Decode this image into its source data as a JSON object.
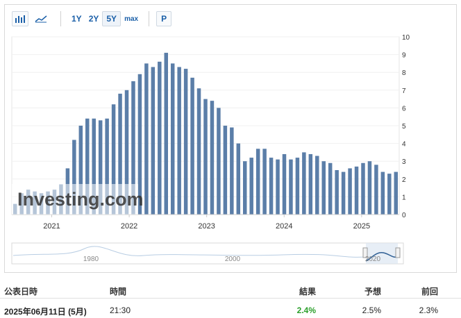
{
  "toolbar": {
    "bar_chart_icon": "bar-chart-icon",
    "line_chart_icon": "line-chart-icon",
    "ranges": [
      "1Y",
      "2Y",
      "5Y",
      "max"
    ],
    "active_range": "5Y",
    "p_label": "P"
  },
  "chart_data": {
    "type": "bar",
    "color": "#5b7ea8",
    "y_ticks": [
      "0",
      "1",
      "2",
      "3",
      "4",
      "5",
      "6",
      "7",
      "8",
      "9",
      "10"
    ],
    "ylim": [
      0,
      10
    ],
    "x_tick_labels": [
      "2021",
      "2022",
      "2023",
      "2024",
      "2025"
    ],
    "series": [
      {
        "values": [
          0.6,
          1.2,
          1.4,
          1.3,
          1.2,
          1.3,
          1.4,
          1.7,
          2.6,
          4.2,
          5.0,
          5.4,
          5.4,
          5.3,
          5.4,
          6.2,
          6.8,
          7.0,
          7.5,
          7.9,
          8.5,
          8.3,
          8.6,
          9.1,
          8.5,
          8.3,
          8.2,
          7.7,
          7.1,
          6.5,
          6.4,
          6.0,
          5.0,
          4.9,
          4.0,
          3.0,
          3.2,
          3.7,
          3.7,
          3.2,
          3.1,
          3.4,
          3.1,
          3.2,
          3.5,
          3.4,
          3.3,
          3.0,
          2.9,
          2.5,
          2.4,
          2.6,
          2.7,
          2.9,
          3.0,
          2.8,
          2.4,
          2.3,
          2.4
        ]
      }
    ],
    "watermark": "Investing.com",
    "navigator": {
      "labels": [
        "1980",
        "2000",
        "2020"
      ]
    }
  },
  "table": {
    "headers": {
      "date": "公表日時",
      "time": "時間",
      "actual": "結果",
      "forecast": "予想",
      "previous": "前回"
    },
    "rows": [
      {
        "date": "2025年06月11日 (5月)",
        "time": "21:30",
        "actual": "2.4%",
        "forecast": "2.5%",
        "previous": "2.3%",
        "actual_color": "#2ca02c"
      }
    ]
  }
}
